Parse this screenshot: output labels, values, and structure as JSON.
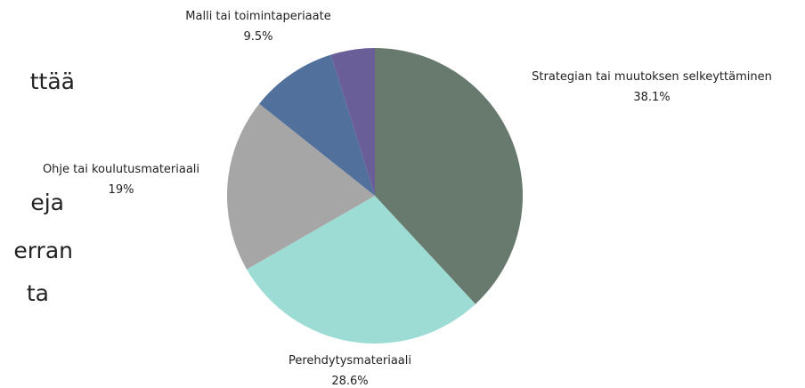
{
  "side_text": [
    "ttää",
    "eja",
    "erran",
    "ta"
  ],
  "chart_data": {
    "type": "pie",
    "categories": [
      "Strategian tai muutoksen selkeyttäminen",
      "Perehdytysmateriaali",
      "Ohje tai koulutusmateriaali",
      "Malli tai toimintaperiaate",
      null
    ],
    "values": [
      38.1,
      28.6,
      19,
      9.5,
      4.8
    ],
    "value_labels": [
      "38.1%",
      "28.6%",
      "19%",
      "9.5%",
      null
    ],
    "colors": [
      "#687a6e",
      "#9ddcd4",
      "#a6a6a6",
      "#51709c",
      "#6a5e98"
    ]
  }
}
